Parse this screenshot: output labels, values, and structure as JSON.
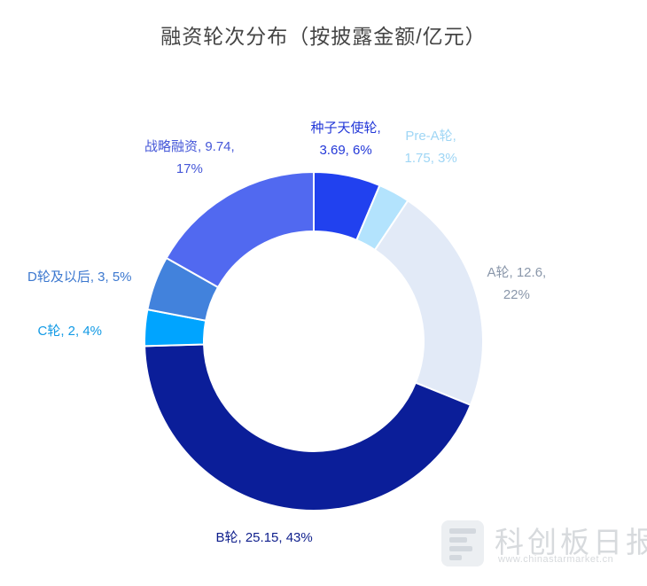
{
  "chart_data": {
    "type": "pie",
    "title": "融资轮次分布（按披露金额/亿元）",
    "unit": "亿元",
    "donut": true,
    "start_angle_deg": 0,
    "direction": "clockwise",
    "slices": [
      {
        "name": "种子天使轮",
        "value": 3.69,
        "percent": "6%",
        "color": "#2141ef",
        "label_line1": "种子天使轮,",
        "label_line2": "3.69, 6%",
        "label_color": "#2338d8"
      },
      {
        "name": "Pre-A轮",
        "value": 1.75,
        "percent": "3%",
        "color": "#b3e3fd",
        "label_line1": "Pre-A轮,",
        "label_line2": "1.75, 3%",
        "label_color": "#9fd6f5"
      },
      {
        "name": "A轮",
        "value": 12.6,
        "percent": "22%",
        "color": "#e2eaf7",
        "label_line1": "A轮, 12.6,",
        "label_line2": "22%",
        "label_color": "#8a97aa"
      },
      {
        "name": "B轮",
        "value": 25.15,
        "percent": "43%",
        "color": "#0b1e99",
        "label_line1": "B轮, 25.15, 43%",
        "label_line2": "",
        "label_color": "#0f1f8c"
      },
      {
        "name": "C轮",
        "value": 2,
        "percent": "4%",
        "color": "#00a4ff",
        "label_line1": "C轮, 2, 4%",
        "label_line2": "",
        "label_color": "#129ae5"
      },
      {
        "name": "D轮及以后",
        "value": 3,
        "percent": "5%",
        "color": "#4282dc",
        "label_line1": "D轮及以后, 3, 5%",
        "label_line2": "",
        "label_color": "#3c78cf"
      },
      {
        "name": "战略融资",
        "value": 9.74,
        "percent": "17%",
        "color": "#5169f0",
        "label_line1": "战略融资, 9.74,",
        "label_line2": "17%",
        "label_color": "#4557d8"
      }
    ]
  },
  "watermark": {
    "name": "科创板日报",
    "url": "www.chinastarmarket.cn"
  }
}
